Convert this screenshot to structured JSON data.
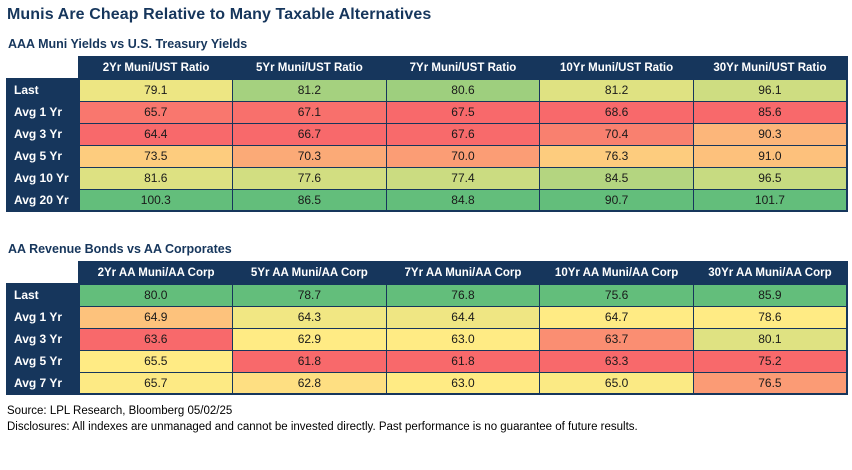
{
  "title": "Munis Are Cheap Relative to Many Taxable Alternatives",
  "colors": {
    "navy": "#16365C",
    "header_text": "#FFFFFF",
    "scale_low_red": "#F8696B",
    "scale_mid_yellow": "#FFEB84",
    "scale_high_green": "#63BE7B"
  },
  "footer": {
    "source": "Source: LPL Research, Bloomberg 05/02/25",
    "disclosures": "Disclosures: All indexes are unmanaged and cannot be invested directly. Past performance is no guarantee of future results."
  },
  "chart_data": [
    {
      "type": "heatmap",
      "title": "AAA Muni Yields vs U.S. Treasury Yields",
      "legend_position": "none",
      "color_scale": {
        "low": "#F8696B",
        "mid": "#FFEB84",
        "high": "#63BE7B",
        "applied": "per column, red-yellow-green"
      },
      "columns": [
        "2Yr Muni/UST Ratio",
        "5Yr Muni/UST Ratio",
        "7Yr Muni/UST Ratio",
        "10Yr Muni/UST Ratio",
        "30Yr Muni/UST Ratio"
      ],
      "rows": [
        {
          "label": "Last",
          "values": [
            79.1,
            81.2,
            80.6,
            81.2,
            96.1
          ],
          "cell_colors": [
            "#EDE683",
            "#A5D17F",
            "#9ECF7E",
            "#DFE282",
            "#CEDD81"
          ]
        },
        {
          "label": "Avg 1 Yr",
          "values": [
            65.7,
            67.1,
            67.5,
            68.6,
            85.6
          ],
          "cell_colors": [
            "#F9776E",
            "#F8706C",
            "#F8696B",
            "#F8696B",
            "#F8696B"
          ]
        },
        {
          "label": "Avg 3 Yr",
          "values": [
            64.4,
            66.7,
            67.6,
            70.4,
            90.3
          ],
          "cell_colors": [
            "#F8696B",
            "#F8696B",
            "#F86A6B",
            "#F9806F",
            "#FCB67A"
          ]
        },
        {
          "label": "Avg 5 Yr",
          "values": [
            73.5,
            70.3,
            70.0,
            76.3,
            91.0
          ],
          "cell_colors": [
            "#FDCC7E",
            "#FBAA77",
            "#FB9D75",
            "#FDCC7E",
            "#FDC17C"
          ]
        },
        {
          "label": "Avg 10 Yr",
          "values": [
            81.6,
            77.6,
            77.4,
            84.5,
            96.5
          ],
          "cell_colors": [
            "#DDE182",
            "#D2DE81",
            "#CBDC81",
            "#B4D580",
            "#C7DB81"
          ]
        },
        {
          "label": "Avg 20 Yr",
          "values": [
            100.3,
            86.5,
            84.8,
            90.7,
            101.7
          ],
          "cell_colors": [
            "#63BE7B",
            "#63BE7B",
            "#63BE7B",
            "#63BE7B",
            "#63BE7B"
          ]
        }
      ]
    },
    {
      "type": "heatmap",
      "title": "AA Revenue Bonds vs AA Corporates",
      "legend_position": "none",
      "color_scale": {
        "low": "#F8696B",
        "mid": "#FFEB84",
        "high": "#63BE7B",
        "applied": "per column, red-yellow-green"
      },
      "columns": [
        "2Yr AA Muni/AA Corp",
        "5Yr AA Muni/AA Corp",
        "7Yr AA Muni/AA Corp",
        "10Yr AA Muni/AA Corp",
        "30Yr AA Muni/AA Corp"
      ],
      "rows": [
        {
          "label": "Last",
          "values": [
            80.0,
            78.7,
            76.8,
            75.6,
            85.9
          ],
          "cell_colors": [
            "#63BE7B",
            "#63BE7B",
            "#63BE7B",
            "#63BE7B",
            "#63BE7B"
          ]
        },
        {
          "label": "Avg 1 Yr",
          "values": [
            64.9,
            64.3,
            64.4,
            64.7,
            78.6
          ],
          "cell_colors": [
            "#FDC27C",
            "#F1E783",
            "#EFE683",
            "#FFEB84",
            "#FFEB84"
          ]
        },
        {
          "label": "Avg 3 Yr",
          "values": [
            63.6,
            62.9,
            63.0,
            63.7,
            80.1
          ],
          "cell_colors": [
            "#F8696B",
            "#FFEB84",
            "#FFEB84",
            "#FA8E72",
            "#DFE282"
          ]
        },
        {
          "label": "Avg 5 Yr",
          "values": [
            65.5,
            61.8,
            61.8,
            63.3,
            75.2
          ],
          "cell_colors": [
            "#FFEB84",
            "#F8696B",
            "#F8696B",
            "#F8696B",
            "#F8696B"
          ]
        },
        {
          "label": "Avg 7 Yr",
          "values": [
            65.7,
            62.8,
            63.0,
            65.0,
            76.5
          ],
          "cell_colors": [
            "#FDEA84",
            "#FEDF82",
            "#FFEB84",
            "#FBEA84",
            "#FB9B75"
          ]
        }
      ]
    }
  ]
}
